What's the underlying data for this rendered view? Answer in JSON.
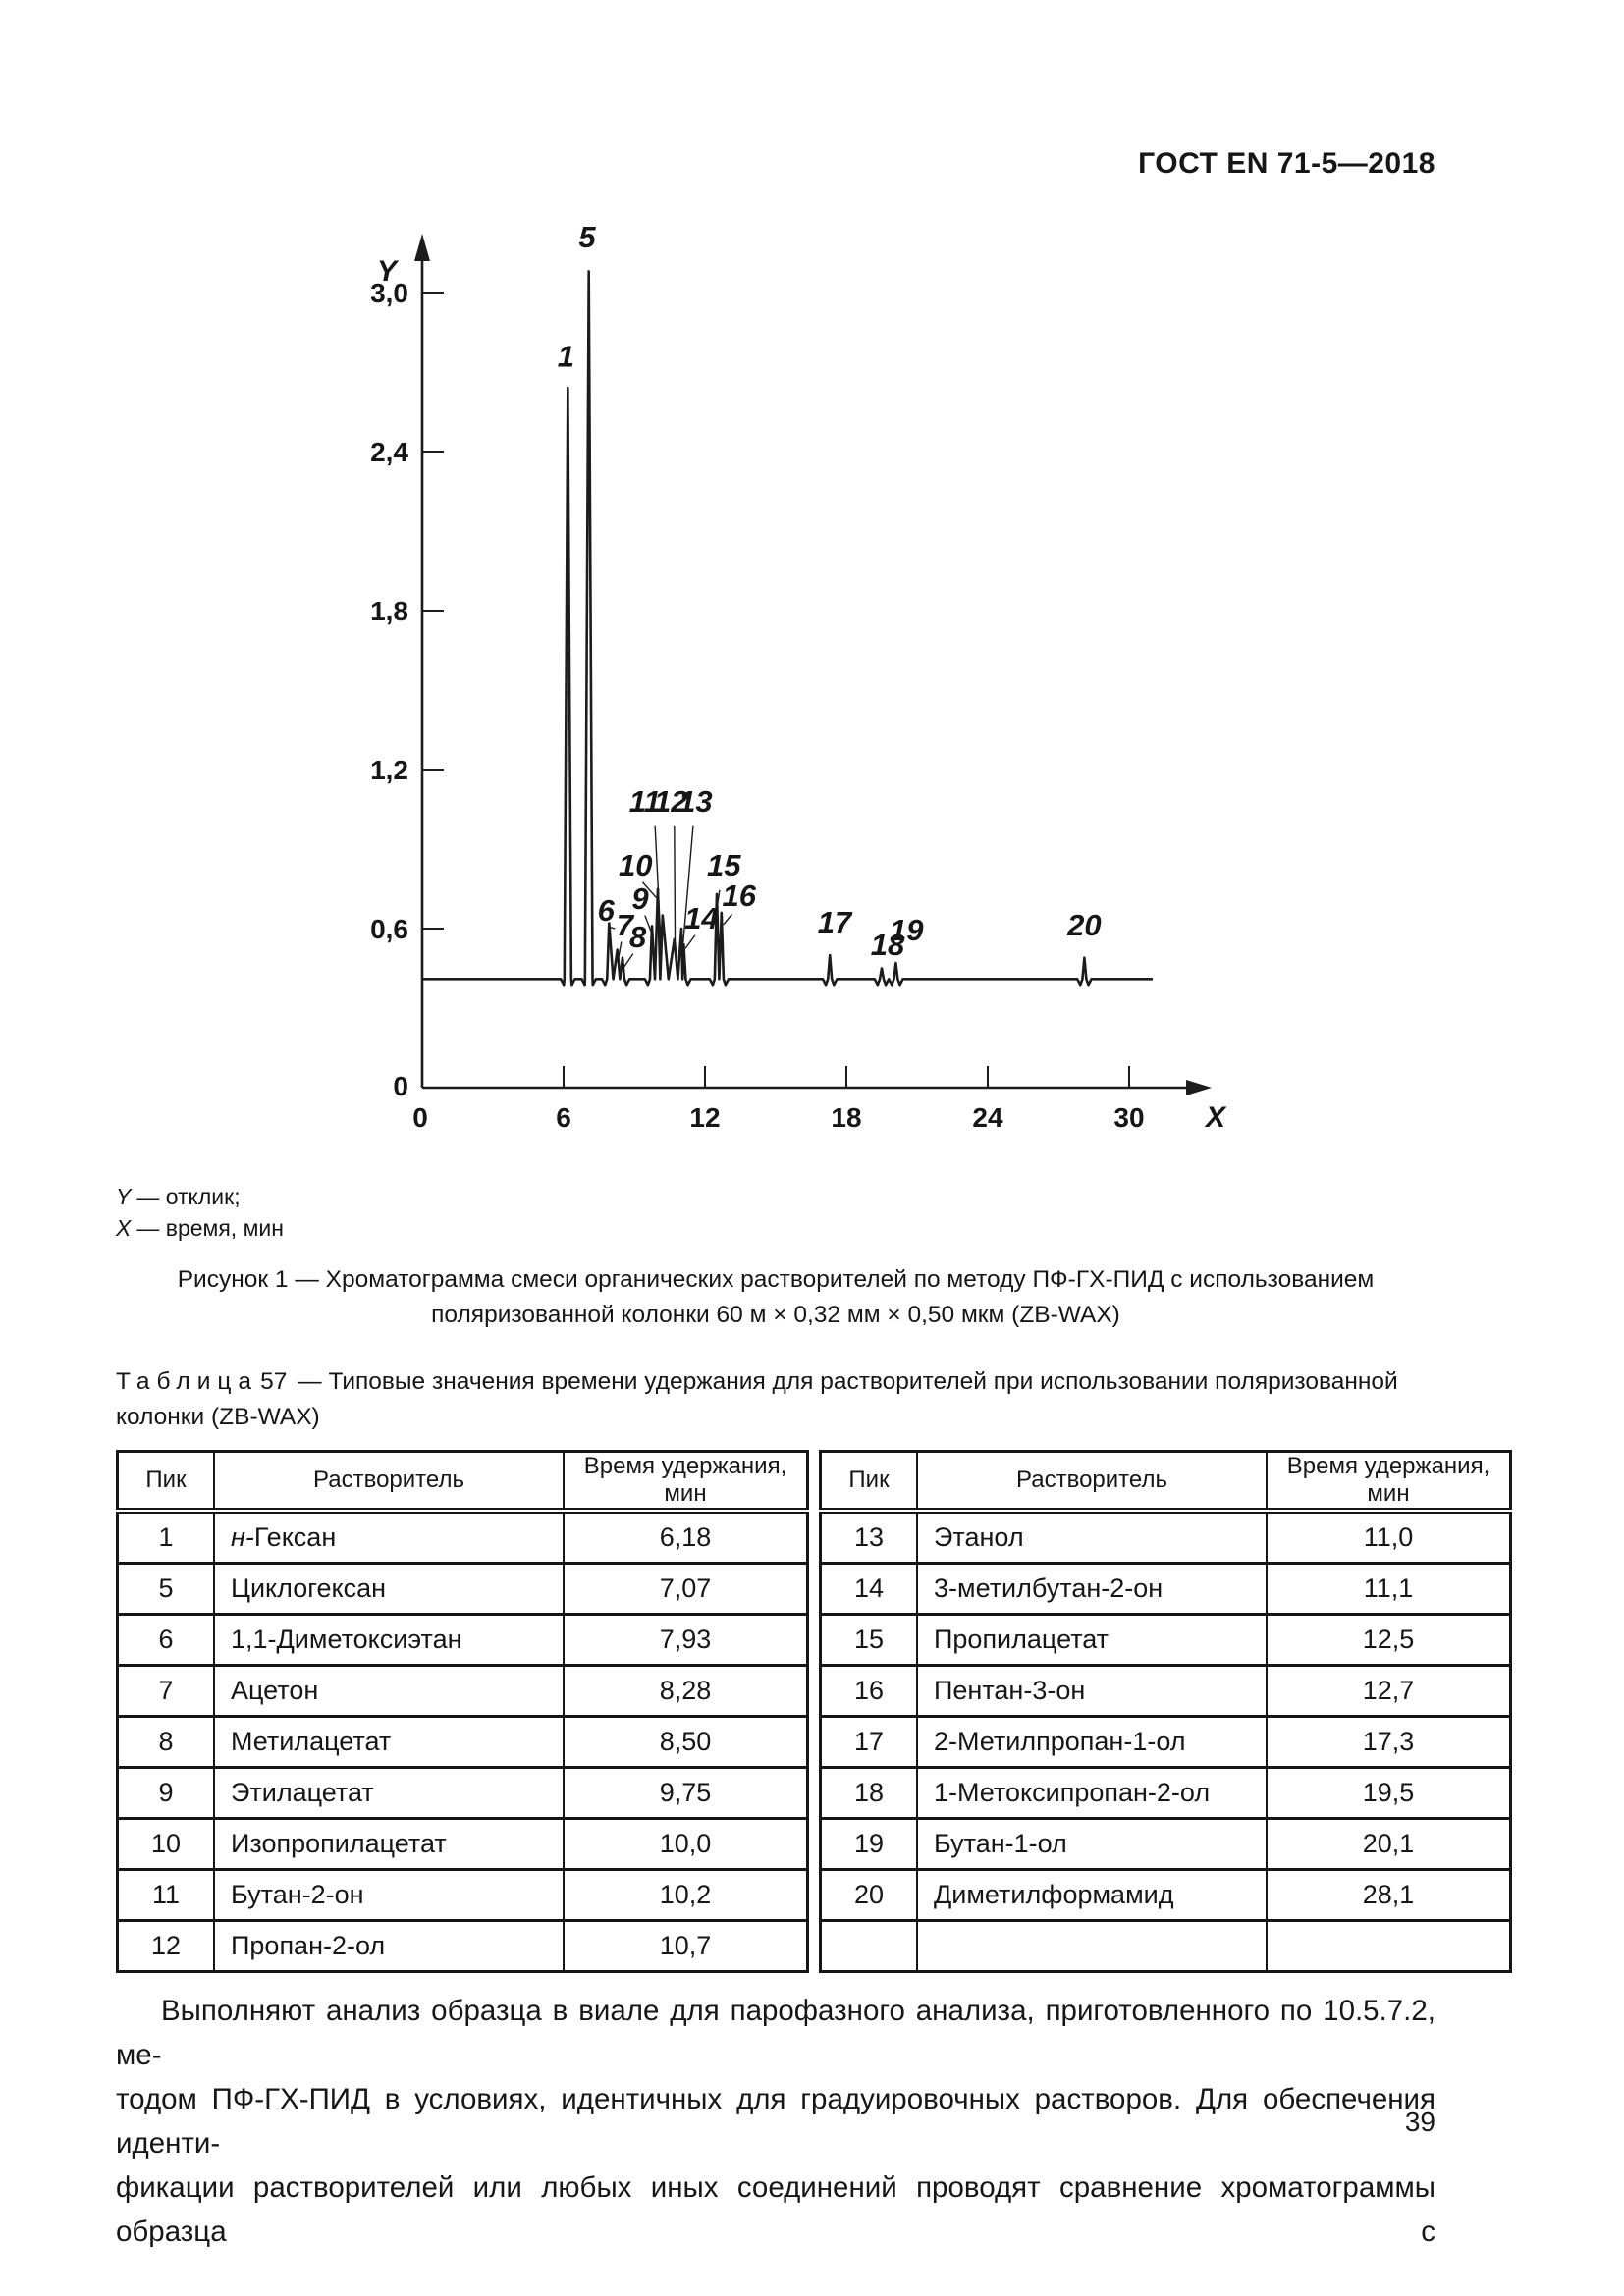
{
  "header": {
    "title": "ГОСТ EN 71-5—2018"
  },
  "figure": {
    "legend": [
      {
        "var": "Y",
        "text": "— отклик;"
      },
      {
        "var": "X",
        "text": "— время, мин"
      }
    ],
    "caption_line1": "Рисунок 1 — Хроматограмма смеси органических растворителей по методу ПФ-ГХ-ПИД с использованием",
    "caption_line2": "поляризованной колонки 60 м × 0,32 мм × 0,50 мкм (ZB-WAX)"
  },
  "chart_data": {
    "type": "line",
    "title": "Хроматограмма смеси органических растворителей (ПФ-ГХ-ПИД, колонка ZB-WAX)",
    "xlabel": "X",
    "ylabel": "Y",
    "x_units": "время, мин",
    "y_units": "отклик",
    "xlim": [
      0,
      33
    ],
    "ylim": [
      0,
      3.3
    ],
    "grid": false,
    "baseline": 0.41,
    "baseline_end": 31,
    "xticks": [
      {
        "v": 0,
        "label": "0"
      },
      {
        "v": 6,
        "label": "6"
      },
      {
        "v": 12,
        "label": "12"
      },
      {
        "v": 18,
        "label": "18"
      },
      {
        "v": 24,
        "label": "24"
      },
      {
        "v": 30,
        "label": "30"
      }
    ],
    "yticks": [
      {
        "v": 0,
        "label": "0"
      },
      {
        "v": 0.6,
        "label": "0,6"
      },
      {
        "v": 1.2,
        "label": "1,2"
      },
      {
        "v": 1.8,
        "label": "1,8"
      },
      {
        "v": 2.4,
        "label": "2,4"
      },
      {
        "v": 3.0,
        "label": "3,0"
      }
    ],
    "peaks": [
      {
        "n": 1,
        "rt": 6.18,
        "top": 2.64
      },
      {
        "n": 5,
        "rt": 7.07,
        "top": 3.08
      },
      {
        "n": 6,
        "rt": 7.93,
        "top": 0.62
      },
      {
        "n": 7,
        "rt": 8.28,
        "top": 0.52
      },
      {
        "n": 8,
        "rt": 8.5,
        "top": 0.49
      },
      {
        "n": 9,
        "rt": 9.75,
        "top": 0.61
      },
      {
        "n": 10,
        "rt": 10.0,
        "top": 0.75
      },
      {
        "n": 11,
        "rt": 10.2,
        "top": 0.65
      },
      {
        "n": 12,
        "rt": 10.7,
        "top": 0.56
      },
      {
        "n": 13,
        "rt": 11.0,
        "top": 0.6
      },
      {
        "n": 14,
        "rt": 11.1,
        "top": 0.54
      },
      {
        "n": 15,
        "rt": 12.5,
        "top": 0.73
      },
      {
        "n": 16,
        "rt": 12.7,
        "top": 0.66
      },
      {
        "n": 17,
        "rt": 17.3,
        "top": 0.5
      },
      {
        "n": 18,
        "rt": 19.5,
        "top": 0.45
      },
      {
        "n": 19,
        "rt": 20.1,
        "top": 0.47
      },
      {
        "n": 20,
        "rt": 28.1,
        "top": 0.49
      }
    ],
    "annotations": [
      {
        "text": "1",
        "x": 6.1,
        "y": 2.72
      },
      {
        "text": "5",
        "x": 7.0,
        "y": 3.17
      },
      {
        "text": "6",
        "x": 7.8,
        "y": 0.63,
        "leader": [
          7.98,
          0.605,
          8.18,
          0.6
        ]
      },
      {
        "text": "7",
        "x": 8.6,
        "y": 0.575,
        "leader": [
          8.45,
          0.55,
          8.33,
          0.49
        ]
      },
      {
        "text": "8",
        "x": 9.15,
        "y": 0.53,
        "leader": [
          8.95,
          0.505,
          8.57,
          0.455
        ]
      },
      {
        "text": "9",
        "x": 9.25,
        "y": 0.675,
        "leader": [
          9.45,
          0.65,
          9.73,
          0.585
        ]
      },
      {
        "text": "10",
        "x": 9.05,
        "y": 0.8,
        "leader": [
          9.35,
          0.775,
          9.95,
          0.715
        ]
      },
      {
        "text": "11",
        "x": 9.45,
        "y": 1.04,
        "leader": [
          9.88,
          0.99,
          10.12,
          0.56
        ]
      },
      {
        "text": "12",
        "x": 10.55,
        "y": 1.04,
        "leader": [
          10.7,
          0.99,
          10.73,
          0.56
        ]
      },
      {
        "text": "13",
        "x": 11.6,
        "y": 1.04,
        "leader": [
          11.5,
          0.99,
          11.05,
          0.52
        ]
      },
      {
        "text": "14",
        "x": 11.85,
        "y": 0.6,
        "leader": [
          11.58,
          0.575,
          11.17,
          0.525
        ]
      },
      {
        "text": "15",
        "x": 12.8,
        "y": 0.8,
        "leader": [
          12.62,
          0.745,
          12.52,
          0.685
        ]
      },
      {
        "text": "16",
        "x": 13.45,
        "y": 0.685,
        "leader": [
          13.15,
          0.655,
          12.78,
          0.615
        ]
      },
      {
        "text": "17",
        "x": 17.5,
        "y": 0.585
      },
      {
        "text": "18",
        "x": 19.75,
        "y": 0.5
      },
      {
        "text": "19",
        "x": 20.55,
        "y": 0.555
      },
      {
        "text": "20",
        "x": 28.1,
        "y": 0.575
      }
    ]
  },
  "table": {
    "title_word": "Таблица",
    "title_number": "57",
    "title_rest": "— Типовые значения времени удержания для растворителей при использовании поляризованной колонки (ZB-WAX)",
    "headers": [
      "Пик",
      "Растворитель",
      "Время удержания, мин"
    ],
    "left_rows": [
      {
        "pik": "1",
        "solvent_prefix": "н-",
        "solvent": "Гексан",
        "time": "6,18"
      },
      {
        "pik": "5",
        "solvent": "Циклогексан",
        "time": "7,07"
      },
      {
        "pik": "6",
        "solvent": "1,1-Диметоксиэтан",
        "time": "7,93"
      },
      {
        "pik": "7",
        "solvent": "Ацетон",
        "time": "8,28"
      },
      {
        "pik": "8",
        "solvent": "Метилацетат",
        "time": "8,50"
      },
      {
        "pik": "9",
        "solvent": "Этилацетат",
        "time": "9,75"
      },
      {
        "pik": "10",
        "solvent": "Изопропилацетат",
        "time": "10,0"
      },
      {
        "pik": "11",
        "solvent": "Бутан-2-он",
        "time": "10,2"
      },
      {
        "pik": "12",
        "solvent": "Пропан-2-ол",
        "time": "10,7"
      }
    ],
    "right_rows": [
      {
        "pik": "13",
        "solvent": "Этанол",
        "time": "11,0"
      },
      {
        "pik": "14",
        "solvent": "3-метилбутан-2-он",
        "time": "11,1"
      },
      {
        "pik": "15",
        "solvent": "Пропилацетат",
        "time": "12,5"
      },
      {
        "pik": "16",
        "solvent": "Пентан-3-он",
        "time": "12,7"
      },
      {
        "pik": "17",
        "solvent": "2-Метилпропан-1-ол",
        "time": "17,3"
      },
      {
        "pik": "18",
        "solvent": "1-Метоксипропан-2-ол",
        "time": "19,5"
      },
      {
        "pik": "19",
        "solvent": "Бутан-1-ол",
        "time": "20,1"
      },
      {
        "pik": "20",
        "solvent": "Диметилформамид",
        "time": "28,1"
      },
      {
        "pik": "",
        "solvent": "",
        "time": ""
      }
    ]
  },
  "paragraph": {
    "lines": [
      "Выполняют анализ образца в виале для парофазного анализа, приготовленного по 10.5.7.2, ме-",
      "тодом ПФ-ГХ-ПИД в условиях, идентичных для градуировочных растворов. Для обеспечения иденти-",
      "фикации растворителей или любых иных соединений проводят сравнение хроматограммы образца с"
    ]
  },
  "footer": {
    "page_number": "39"
  }
}
